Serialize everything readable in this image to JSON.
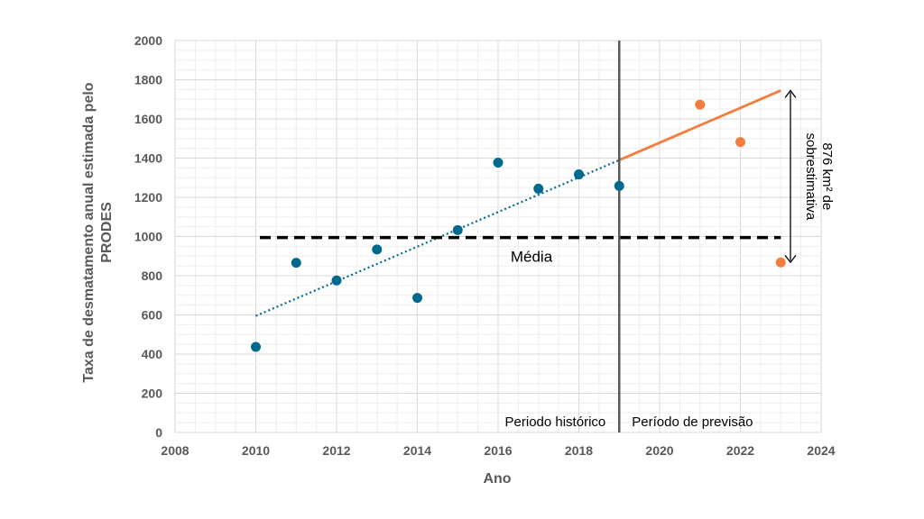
{
  "chart_data": {
    "type": "scatter",
    "xlabel": "Ano",
    "ylabel_lines": [
      "Taxa de desmatamento anual estimada pelo",
      "PRODES"
    ],
    "xlim": [
      2008,
      2024
    ],
    "ylim": [
      0,
      2000
    ],
    "x_ticks": [
      "2008",
      "2010",
      "2012",
      "2014",
      "2016",
      "2018",
      "2020",
      "2022",
      "2024"
    ],
    "y_ticks": [
      "0",
      "200",
      "400",
      "600",
      "800",
      "1000",
      "1200",
      "1400",
      "1600",
      "1800",
      "2000"
    ],
    "grid": true,
    "series": [
      {
        "color": "#006a8e",
        "points": [
          {
            "x": 2010,
            "y": 437
          },
          {
            "x": 2011,
            "y": 866
          },
          {
            "x": 2012,
            "y": 776
          },
          {
            "x": 2013,
            "y": 934
          },
          {
            "x": 2014,
            "y": 687
          },
          {
            "x": 2015,
            "y": 1033
          },
          {
            "x": 2016,
            "y": 1377
          },
          {
            "x": 2017,
            "y": 1244
          },
          {
            "x": 2018,
            "y": 1317
          },
          {
            "x": 2019,
            "y": 1258
          }
        ]
      },
      {
        "color": "#f47c3c",
        "points": [
          {
            "x": 2021,
            "y": 1673
          },
          {
            "x": 2022,
            "y": 1482
          },
          {
            "x": 2023,
            "y": 868
          }
        ]
      }
    ],
    "trend_historical": {
      "color": "#006a8e",
      "from": {
        "x": 2010,
        "y": 595
      },
      "to": {
        "x": 2019,
        "y": 1390
      }
    },
    "trend_forecast": {
      "color": "#f47c3c",
      "from": {
        "x": 2019,
        "y": 1390
      },
      "to": {
        "x": 2023,
        "y": 1745
      }
    },
    "mean_line": {
      "y": 995,
      "x_from": 2010.1,
      "x_to": 2023,
      "label": "Média"
    },
    "divider_x": 2019,
    "period_labels": {
      "historical": "Periodo histórico",
      "forecast": "Período de previsão"
    },
    "overestimate": {
      "from_y": 1745,
      "to_y": 868,
      "label_line1": "876 km² de",
      "label_line2": "sobrestimativa"
    }
  }
}
